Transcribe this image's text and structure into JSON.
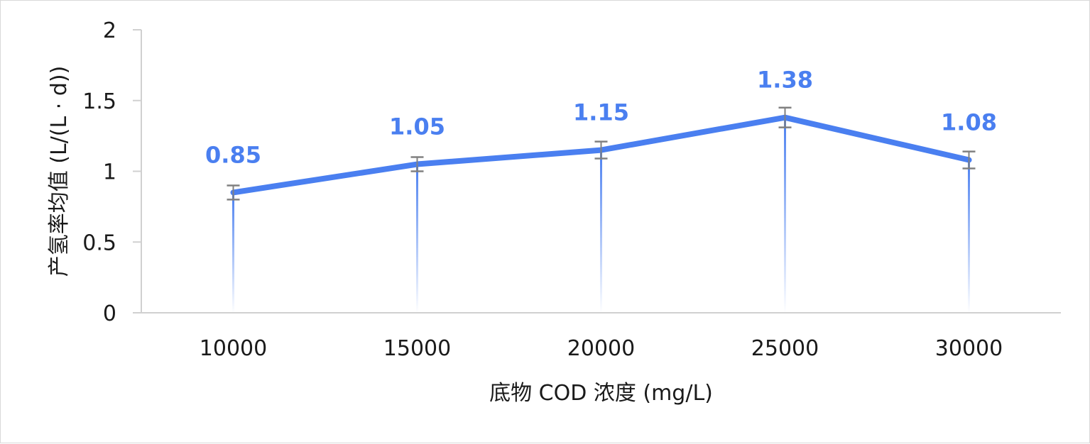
{
  "chart_data": {
    "type": "line",
    "x": [
      10000,
      15000,
      20000,
      25000,
      30000
    ],
    "categories": [
      "10000",
      "15000",
      "20000",
      "25000",
      "30000"
    ],
    "series": [
      {
        "values": [
          0.85,
          1.05,
          1.15,
          1.38,
          1.08
        ],
        "error": [
          0.05,
          0.05,
          0.06,
          0.07,
          0.06
        ],
        "labels": [
          "0.85",
          "1.05",
          "1.15",
          "1.38",
          "1.08"
        ],
        "color": "#4a7ff0"
      }
    ],
    "xlabel": "底物 COD 浓度 (mg/L)",
    "ylabel": "产氢率均值 (L/(L · d))",
    "ylim": [
      0,
      2
    ],
    "yticks": [
      "0",
      "0.5",
      "1",
      "1.5",
      "2"
    ],
    "ytick_values": [
      0,
      0.5,
      1,
      1.5,
      2
    ],
    "grid": false,
    "legend": "none",
    "drop_lines": true
  },
  "colors": {
    "accent": "#4a7ff0",
    "errorbar": "#808080",
    "axis": "#d0d0d0",
    "text": "#1a1a1a"
  }
}
